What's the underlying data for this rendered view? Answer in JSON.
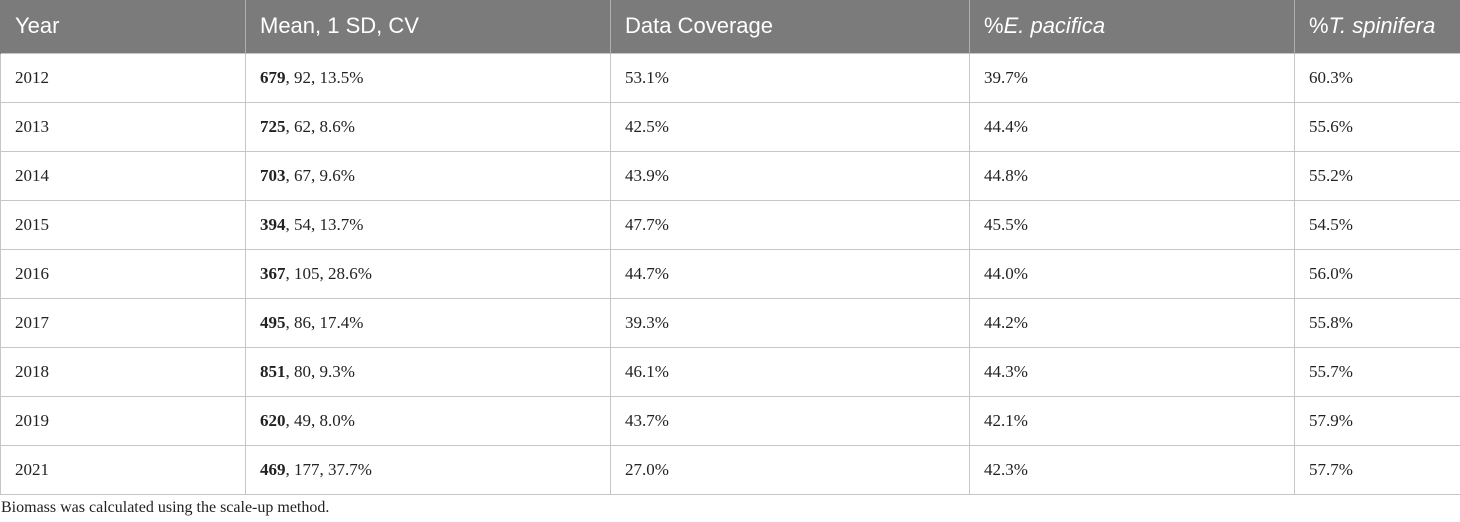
{
  "table": {
    "headers": {
      "year": "Year",
      "mean": "Mean, 1 SD, CV",
      "coverage": "Data Coverage",
      "epac_prefix": "%",
      "epac_species": "E. pacifica",
      "tspin_prefix": "%",
      "tspin_species": "T. spinifera"
    },
    "rows": [
      {
        "year": "2012",
        "mean": "679",
        "sd_cv": ", 92, 13.5%",
        "coverage": "53.1%",
        "epac": "39.7%",
        "tspin": "60.3%"
      },
      {
        "year": "2013",
        "mean": "725",
        "sd_cv": ", 62, 8.6%",
        "coverage": "42.5%",
        "epac": "44.4%",
        "tspin": "55.6%"
      },
      {
        "year": "2014",
        "mean": "703",
        "sd_cv": ", 67, 9.6%",
        "coverage": "43.9%",
        "epac": "44.8%",
        "tspin": "55.2%"
      },
      {
        "year": "2015",
        "mean": "394",
        "sd_cv": ", 54, 13.7%",
        "coverage": "47.7%",
        "epac": "45.5%",
        "tspin": "54.5%"
      },
      {
        "year": "2016",
        "mean": "367",
        "sd_cv": ", 105, 28.6%",
        "coverage": "44.7%",
        "epac": "44.0%",
        "tspin": "56.0%"
      },
      {
        "year": "2017",
        "mean": "495",
        "sd_cv": ", 86, 17.4%",
        "coverage": "39.3%",
        "epac": "44.2%",
        "tspin": "55.8%"
      },
      {
        "year": "2018",
        "mean": "851",
        "sd_cv": ", 80, 9.3%",
        "coverage": "46.1%",
        "epac": "44.3%",
        "tspin": "55.7%"
      },
      {
        "year": "2019",
        "mean": "620",
        "sd_cv": ", 49, 8.0%",
        "coverage": "43.7%",
        "epac": "42.1%",
        "tspin": "57.9%"
      },
      {
        "year": "2021",
        "mean": "469",
        "sd_cv": ", 177, 37.7%",
        "coverage": "27.0%",
        "epac": "42.3%",
        "tspin": "57.7%"
      }
    ]
  },
  "footnote": "Biomass was calculated using the scale-up method.",
  "colors": {
    "header_bg": "#7b7b7b",
    "header_text": "#ffffff",
    "grid": "#c6c6c6",
    "body_text": "#222222"
  }
}
